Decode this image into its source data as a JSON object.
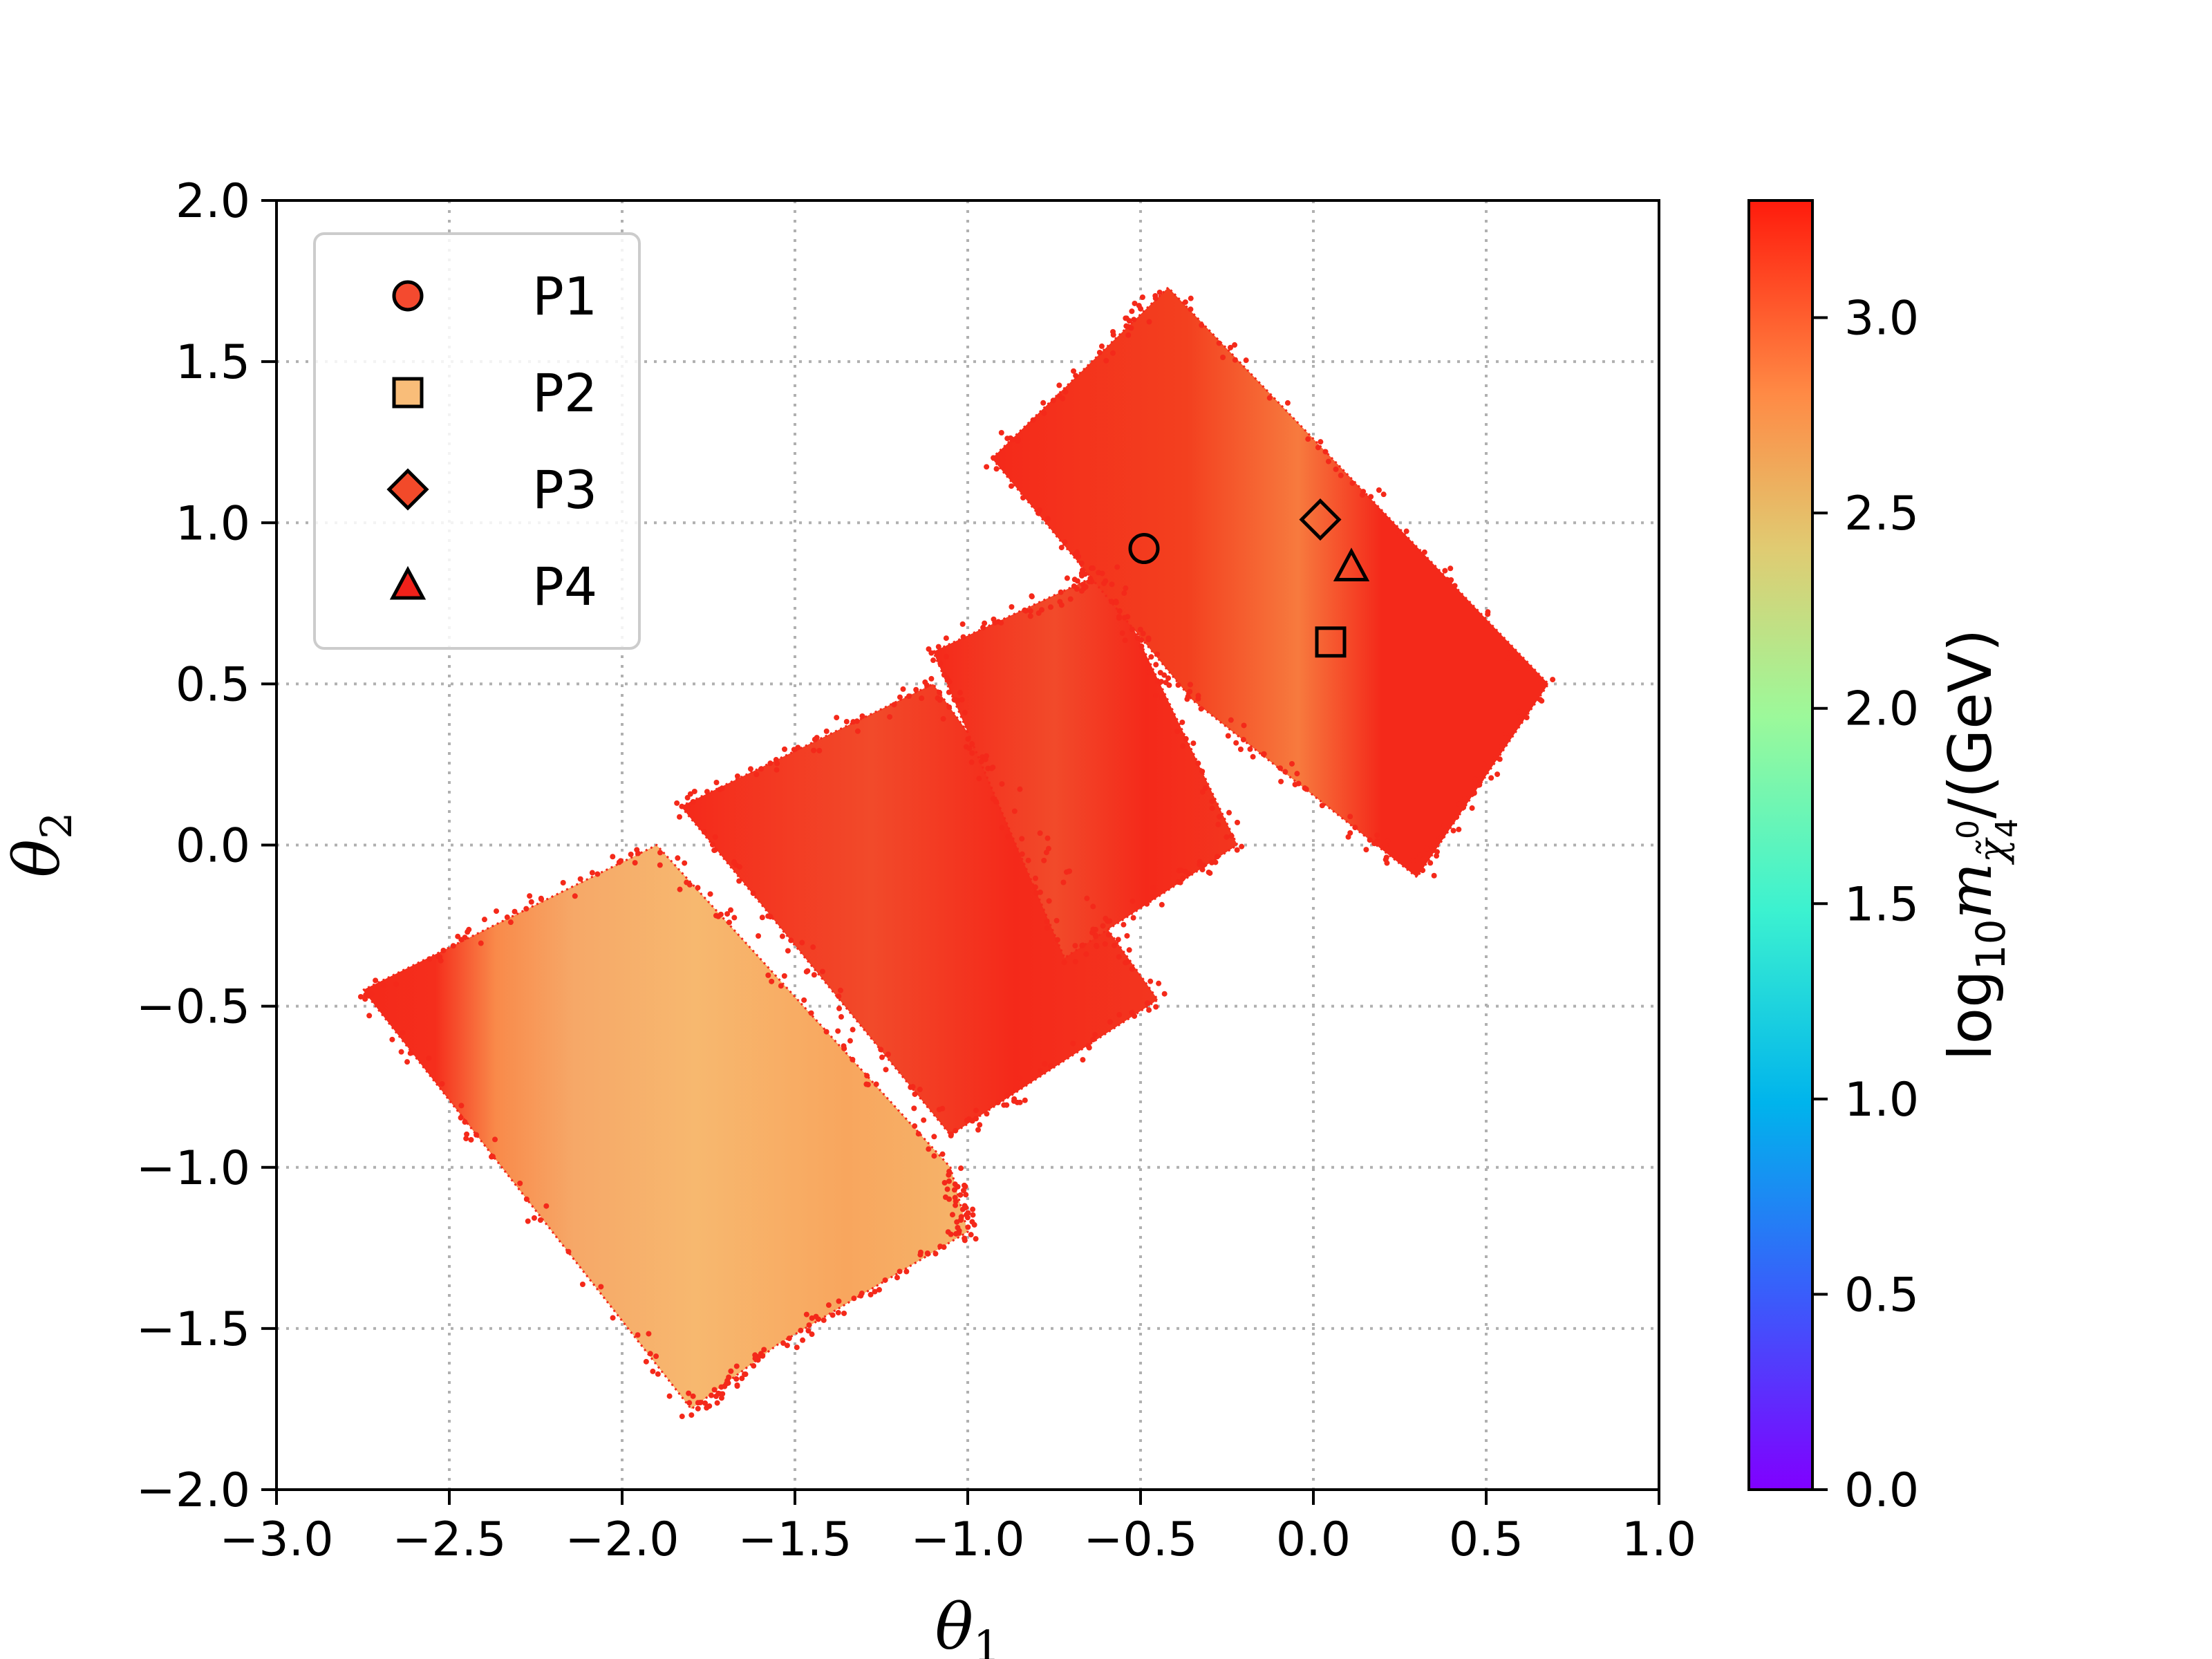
{
  "colors": {
    "band_red": "#f4291a",
    "band_orange": "#f77a3e",
    "band_light": "#f6b66a",
    "legend_p1": "#f44a2f",
    "legend_p2": "#f9bd79",
    "legend_p3": "#f24a2a",
    "legend_p4": "#f0211a"
  },
  "chart_data": {
    "type": "scatter",
    "xlabel": "θ₁",
    "ylabel": "θ₂",
    "xlim": [
      -3.0,
      1.0
    ],
    "ylim": [
      -2.0,
      2.0
    ],
    "xticks": [
      "−3.0",
      "−2.5",
      "−2.0",
      "−1.5",
      "−1.0",
      "−0.5",
      "0.0",
      "0.5",
      "1.0"
    ],
    "yticks": [
      "−2.0",
      "−1.5",
      "−1.0",
      "−0.5",
      "0.0",
      "0.5",
      "1.0",
      "1.5",
      "2.0"
    ],
    "grid": true,
    "legend_position": "top-left",
    "colorbar": {
      "label": "log₁₀ m_χ̃⁰₄ /(GeV)",
      "label_base": "log",
      "label_sub": "10",
      "label_m": "m",
      "label_chi": "χ̃",
      "label_chi_sup": "0",
      "label_chi_sub": "4",
      "label_tail": "/(GeV)",
      "range": [
        0.0,
        3.3
      ],
      "ticks": [
        "0.0",
        "0.5",
        "1.0",
        "1.5",
        "2.0",
        "2.5",
        "3.0"
      ],
      "colormap": "rainbow"
    },
    "regions": [
      {
        "polygon": [
          [
            -2.75,
            -0.45
          ],
          [
            -1.9,
            0.0
          ],
          [
            -1.05,
            -1.0
          ],
          [
            -1.0,
            -1.2
          ],
          [
            -1.55,
            -1.55
          ],
          [
            -1.8,
            -1.75
          ]
        ],
        "typical_log10_m": 2.9
      },
      {
        "polygon": [
          [
            -1.83,
            0.12
          ],
          [
            -1.1,
            0.5
          ],
          [
            -0.45,
            -0.48
          ],
          [
            -1.05,
            -0.9
          ]
        ],
        "typical_log10_m": 3.2
      },
      {
        "polygon": [
          [
            -1.1,
            0.6
          ],
          [
            -0.6,
            0.85
          ],
          [
            -0.22,
            0.0
          ],
          [
            -0.72,
            -0.35
          ]
        ],
        "typical_log10_m": 3.2
      },
      {
        "polygon": [
          [
            -0.93,
            1.2
          ],
          [
            -0.42,
            1.73
          ],
          [
            0.68,
            0.5
          ],
          [
            0.3,
            -0.1
          ],
          [
            -0.35,
            0.45
          ]
        ],
        "typical_log10_m": 3.2
      }
    ],
    "series": [
      {
        "name": "P1",
        "marker": "circle",
        "x": -0.49,
        "y": 0.92,
        "log10_m": 3.15
      },
      {
        "name": "P2",
        "marker": "square",
        "x": 0.05,
        "y": 0.63,
        "log10_m": 2.55
      },
      {
        "name": "P3",
        "marker": "diamond",
        "x": 0.02,
        "y": 1.01,
        "log10_m": 3.15
      },
      {
        "name": "P4",
        "marker": "triangle",
        "x": 0.11,
        "y": 0.86,
        "log10_m": 3.25
      }
    ]
  }
}
